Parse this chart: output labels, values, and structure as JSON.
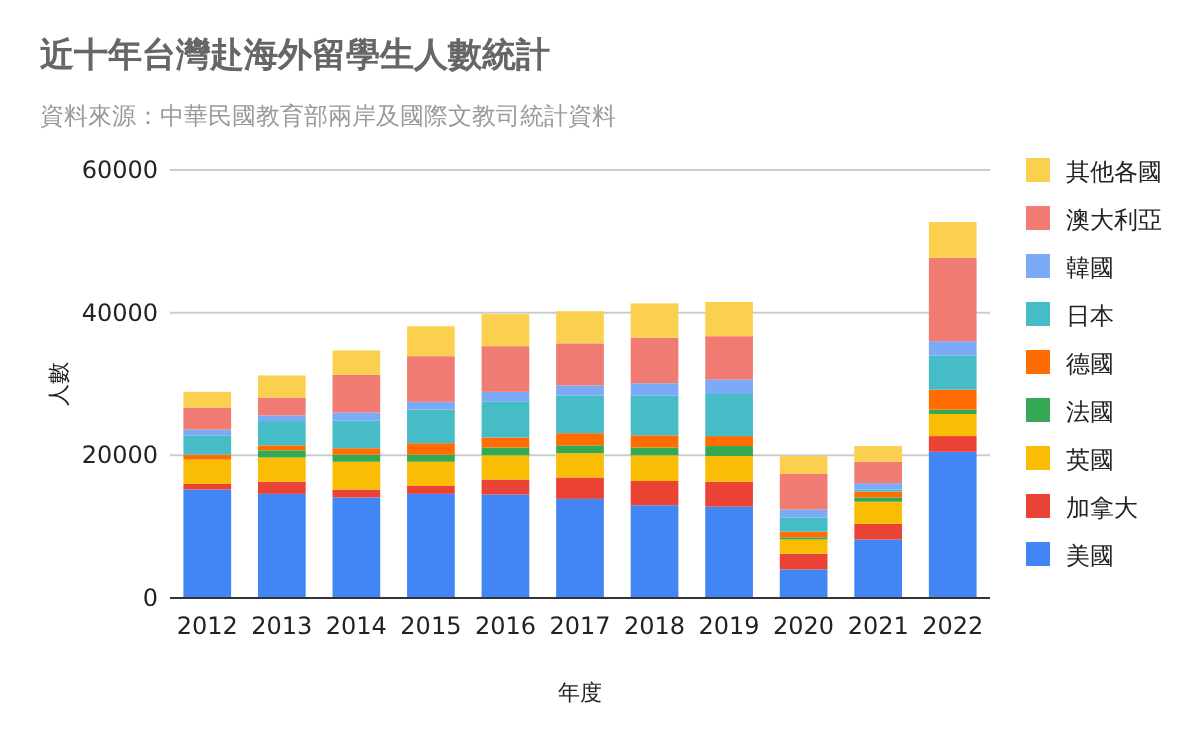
{
  "chart_data": {
    "type": "bar",
    "stacked": true,
    "title": "近十年台灣赴海外留學生人數統計",
    "subtitle": "資料來源：中華民國教育部兩岸及國際文教司統計資料",
    "xlabel": "年度",
    "ylabel": "人數",
    "categories": [
      "2012",
      "2013",
      "2014",
      "2015",
      "2016",
      "2017",
      "2018",
      "2019",
      "2020",
      "2021",
      "2022"
    ],
    "ylim": [
      0,
      60000
    ],
    "yticks": [
      0,
      20000,
      40000,
      60000
    ],
    "grid": "y",
    "legend": "right",
    "series": [
      {
        "name": "美國",
        "color": "#4285f4",
        "values": [
          15200,
          14600,
          14100,
          14600,
          14500,
          13900,
          13000,
          12800,
          4000,
          8200,
          20500
        ]
      },
      {
        "name": "加拿大",
        "color": "#ea4335",
        "values": [
          800,
          1700,
          1100,
          1100,
          2100,
          3000,
          3400,
          3500,
          2200,
          2200,
          2200
        ]
      },
      {
        "name": "英國",
        "color": "#fbbc04",
        "values": [
          3400,
          3400,
          3900,
          3400,
          3400,
          3400,
          3600,
          3600,
          2000,
          3100,
          3100
        ]
      },
      {
        "name": "法國",
        "color": "#34a853",
        "values": [
          0,
          1000,
          1000,
          1000,
          1100,
          1100,
          1100,
          1400,
          300,
          600,
          600
        ]
      },
      {
        "name": "德國",
        "color": "#ff6d01",
        "values": [
          700,
          700,
          900,
          1600,
          1400,
          1700,
          1700,
          1400,
          800,
          800,
          2800
        ]
      },
      {
        "name": "日本",
        "color": "#46bdc6",
        "values": [
          2700,
          3400,
          3900,
          4700,
          5000,
          5300,
          5600,
          5900,
          2000,
          300,
          4800
        ]
      },
      {
        "name": "韓國",
        "color": "#7baaf7",
        "values": [
          800,
          800,
          1100,
          1100,
          1400,
          1400,
          1700,
          2000,
          1100,
          900,
          2000
        ]
      },
      {
        "name": "澳大利亞",
        "color": "#f07b72",
        "values": [
          3100,
          2500,
          5300,
          6400,
          6400,
          5900,
          6400,
          6100,
          5000,
          3000,
          11700
        ]
      },
      {
        "name": "其他各國",
        "color": "#fcd04f",
        "values": [
          2200,
          3100,
          3400,
          4200,
          4500,
          4500,
          4800,
          4800,
          2500,
          2200,
          5000
        ]
      }
    ]
  }
}
